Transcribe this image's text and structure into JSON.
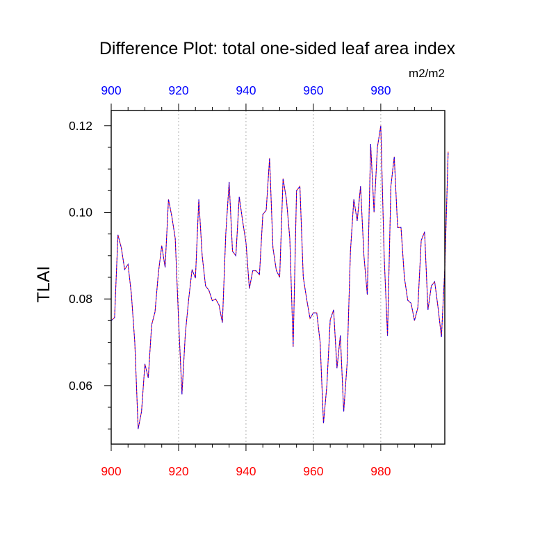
{
  "chart_data": {
    "type": "line",
    "title": "Difference Plot: total one-sided leaf area index",
    "units": "m2/m2",
    "ylabel": "TLAI",
    "xlabel": "",
    "xlim": [
      900,
      999
    ],
    "ylim": [
      0.0465,
      0.1235
    ],
    "x_ticks": [
      "900",
      "920",
      "940",
      "960",
      "980"
    ],
    "y_ticks": [
      "0.06",
      "0.08",
      "0.10",
      "0.12"
    ],
    "x_tick_values": [
      900,
      920,
      940,
      960,
      980
    ],
    "y_tick_values": [
      0.06,
      0.08,
      0.1,
      0.12
    ],
    "bottom_axis_color": "#ff0000",
    "top_axis_color": "#0000ff",
    "grid": "vertical dotted at major x ticks",
    "series": [
      {
        "line_color": "#ff0000",
        "overlay_color": "#0000ff",
        "style": "dashed",
        "x_start": 900,
        "x_step": 1,
        "values": [
          0.075,
          0.0757,
          0.0948,
          0.0918,
          0.0868,
          0.088,
          0.081,
          0.07,
          0.05,
          0.054,
          0.065,
          0.0618,
          0.074,
          0.077,
          0.086,
          0.0923,
          0.0873,
          0.103,
          0.099,
          0.094,
          0.075,
          0.058,
          0.072,
          0.08,
          0.0868,
          0.0848,
          0.103,
          0.09,
          0.083,
          0.082,
          0.0796,
          0.08,
          0.0786,
          0.0745,
          0.095,
          0.107,
          0.091,
          0.09,
          0.1036,
          0.098,
          0.093,
          0.0824,
          0.0865,
          0.0865,
          0.0856,
          0.0995,
          0.1005,
          0.1125,
          0.0918,
          0.0866,
          0.085,
          0.1078,
          0.103,
          0.094,
          0.069,
          0.105,
          0.106,
          0.085,
          0.08,
          0.0755,
          0.0768,
          0.0768,
          0.07,
          0.0513,
          0.06,
          0.0752,
          0.0775,
          0.064,
          0.0716,
          0.054,
          0.065,
          0.091,
          0.103,
          0.098,
          0.106,
          0.09,
          0.081,
          0.1158,
          0.1,
          0.115,
          0.12,
          0.09,
          0.0715,
          0.106,
          0.1128,
          0.0965,
          0.0965,
          0.085,
          0.0797,
          0.079,
          0.075,
          0.078,
          0.0935,
          0.0955,
          0.0775,
          0.083,
          0.084,
          0.078,
          0.0712,
          0.087,
          0.114
        ]
      }
    ]
  }
}
